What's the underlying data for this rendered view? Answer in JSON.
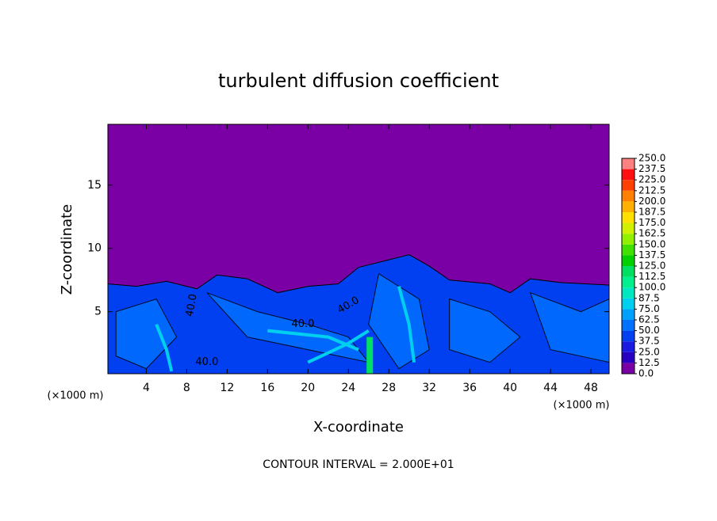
{
  "chart_data": {
    "type": "contour",
    "title": "turbulent diffusion coefficient",
    "xlabel": "X-coordinate",
    "ylabel": "Z-coordinate",
    "x_unit": "(×1000 m)",
    "y_unit": "(×1000 m)",
    "annotation": "CONTOUR INTERVAL = 2.000E+01",
    "contour_label": {
      "value": 40,
      "label": "40.0"
    },
    "xlim": [
      0.2,
      49.8
    ],
    "ylim": [
      0.1,
      19.8
    ],
    "xticks": [
      4,
      8,
      12,
      16,
      20,
      24,
      28,
      32,
      36,
      40,
      44,
      48
    ],
    "yticks": [
      5,
      10,
      15
    ],
    "colorbar": {
      "levels": [
        {
          "value": 0,
          "label": "0.0"
        },
        {
          "value": 12.5,
          "label": "12.5"
        },
        {
          "value": 25,
          "label": "25.0"
        },
        {
          "value": 37.5,
          "label": "37.5"
        },
        {
          "value": 50,
          "label": "50.0"
        },
        {
          "value": 62.5,
          "label": "62.5"
        },
        {
          "value": 75,
          "label": "75.0"
        },
        {
          "value": 87.5,
          "label": "87.5"
        },
        {
          "value": 100,
          "label": "100.0"
        },
        {
          "value": 112.5,
          "label": "112.5"
        },
        {
          "value": 125,
          "label": "125.0"
        },
        {
          "value": 137.5,
          "label": "137.5"
        },
        {
          "value": 150,
          "label": "150.0"
        },
        {
          "value": 162.5,
          "label": "162.5"
        },
        {
          "value": 175,
          "label": "175.0"
        },
        {
          "value": 187.5,
          "label": "187.5"
        },
        {
          "value": 200,
          "label": "200.0"
        },
        {
          "value": 212.5,
          "label": "212.5"
        },
        {
          "value": 225,
          "label": "225.0"
        },
        {
          "value": 237.5,
          "label": "237.5"
        },
        {
          "value": 250,
          "label": "250.0"
        }
      ],
      "colors": [
        "#7a00a6",
        "#2800c0",
        "#1a1ae0",
        "#0040f0",
        "#0070ff",
        "#00a0ff",
        "#00d0f0",
        "#00e8c0",
        "#00f090",
        "#00e060",
        "#00d000",
        "#40e000",
        "#90f000",
        "#d0f000",
        "#ffe000",
        "#ffb000",
        "#ff8000",
        "#ff4000",
        "#ff1010",
        "#ff8080"
      ]
    }
  }
}
